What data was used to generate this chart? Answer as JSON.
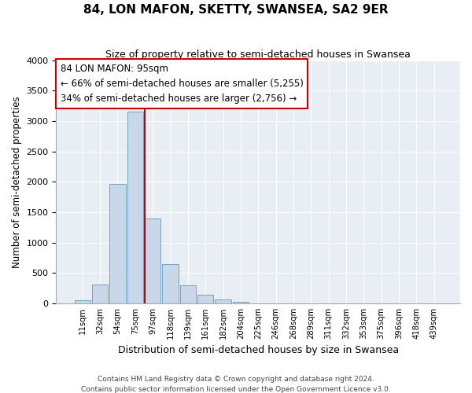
{
  "title": "84, LON MAFON, SKETTY, SWANSEA, SA2 9ER",
  "subtitle": "Size of property relative to semi-detached houses in Swansea",
  "xlabel": "Distribution of semi-detached houses by size in Swansea",
  "ylabel": "Number of semi-detached properties",
  "footer_line1": "Contains HM Land Registry data © Crown copyright and database right 2024.",
  "footer_line2": "Contains public sector information licensed under the Open Government Licence v3.0.",
  "annotation_title": "84 LON MAFON: 95sqm",
  "annotation_line1": "← 66% of semi-detached houses are smaller (5,255)",
  "annotation_line2": "34% of semi-detached houses are larger (2,756) →",
  "bar_color": "#c8d8ea",
  "bar_edge_color": "#6699bb",
  "vline_color": "#cc0000",
  "annotation_box_edge": "#cc0000",
  "plot_bg_color": "#e8eef4",
  "categories": [
    "11sqm",
    "32sqm",
    "54sqm",
    "75sqm",
    "97sqm",
    "118sqm",
    "139sqm",
    "161sqm",
    "182sqm",
    "204sqm",
    "225sqm",
    "246sqm",
    "268sqm",
    "289sqm",
    "311sqm",
    "332sqm",
    "353sqm",
    "375sqm",
    "396sqm",
    "418sqm",
    "439sqm"
  ],
  "values": [
    50,
    310,
    1960,
    3160,
    1400,
    640,
    300,
    140,
    70,
    30,
    5,
    5,
    5,
    3,
    2,
    1,
    1,
    1,
    1,
    1,
    1
  ],
  "vline_index": 4,
  "ylim": [
    0,
    4000
  ],
  "yticks": [
    0,
    500,
    1000,
    1500,
    2000,
    2500,
    3000,
    3500,
    4000
  ]
}
